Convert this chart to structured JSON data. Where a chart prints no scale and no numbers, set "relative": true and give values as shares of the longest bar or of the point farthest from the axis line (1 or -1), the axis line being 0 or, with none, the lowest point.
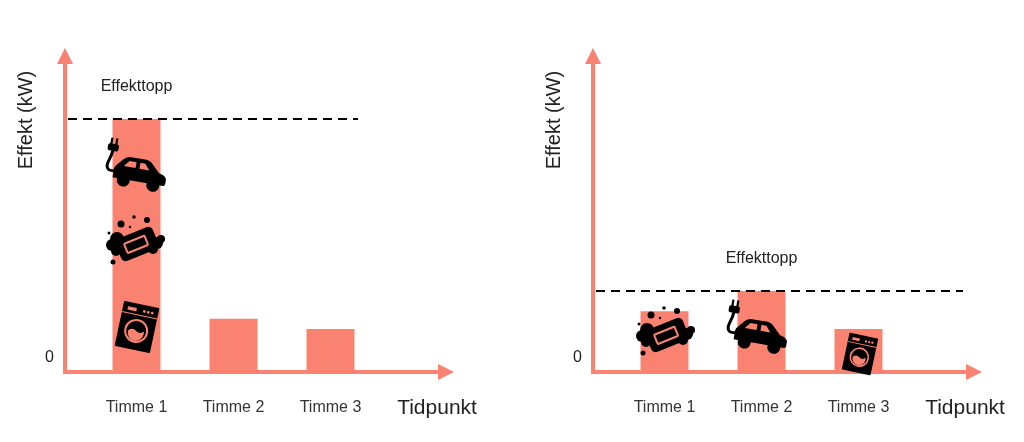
{
  "chart_data": [
    {
      "type": "bar",
      "xlabel": "Tidpunkt",
      "ylabel": "Effekt (kW)",
      "categories": [
        "Timme 1",
        "Timme 2",
        "Timme 3"
      ],
      "values": [
        1,
        0.21,
        0.17
      ],
      "color": "#fa8270",
      "relative": true,
      "ref_lines": [
        {
          "axis": "y",
          "value": 1,
          "label": "Effekttopp",
          "color": "#000000",
          "line_style": "dashed"
        }
      ],
      "annotations": [
        "0"
      ]
    },
    {
      "type": "bar",
      "xlabel": "Tidpunkt",
      "ylabel": "Effekt (kW)",
      "categories": [
        "Timme 1",
        "Timme 2",
        "Timme 3"
      ],
      "values": [
        0.75,
        1,
        0.53
      ],
      "color": "#fa8270",
      "relative": true,
      "ref_lines": [
        {
          "axis": "y",
          "value": 1,
          "label": "Effekttopp",
          "color": "#000000",
          "line_style": "dashed"
        }
      ],
      "annotations": [
        "0"
      ]
    }
  ]
}
